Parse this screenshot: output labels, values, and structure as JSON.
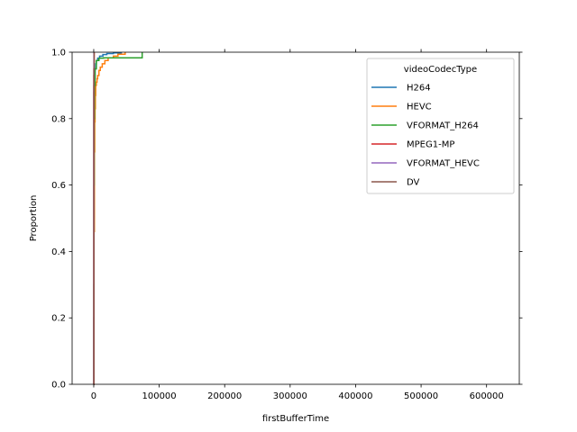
{
  "chart_data": {
    "type": "line",
    "subtype": "ecdf",
    "xlabel": "firstBufferTime",
    "ylabel": "Proportion",
    "xlim": [
      -33000,
      650000
    ],
    "ylim": [
      0.0,
      1.0
    ],
    "xticks": [
      0,
      100000,
      200000,
      300000,
      400000,
      500000,
      600000
    ],
    "xtick_labels": [
      "0",
      "100000",
      "200000",
      "300000",
      "400000",
      "500000",
      "600000"
    ],
    "yticks": [
      0.0,
      0.2,
      0.4,
      0.6,
      0.8,
      1.0
    ],
    "ytick_labels": [
      "0.0",
      "0.2",
      "0.4",
      "0.6",
      "0.8",
      "1.0"
    ],
    "grid": false,
    "legend": {
      "title": "videoCodecType",
      "placement": "upper-right"
    },
    "series": [
      {
        "name": "H264",
        "color": "#1f77b4",
        "x": [
          0,
          200,
          400,
          700,
          1000,
          1500,
          2000,
          3000,
          4000,
          6000,
          9000,
          14000,
          20000,
          30000,
          42000
        ],
        "y": [
          0.0,
          0.2,
          0.5,
          0.72,
          0.85,
          0.92,
          0.95,
          0.965,
          0.975,
          0.982,
          0.988,
          0.993,
          0.996,
          0.998,
          1.0
        ]
      },
      {
        "name": "HEVC",
        "color": "#ff7f0e",
        "x": [
          0,
          500,
          1000,
          1500,
          2000,
          2500,
          3000,
          4000,
          5000,
          6000,
          8000,
          10000,
          13000,
          17000,
          22000,
          30000,
          37000,
          48000
        ],
        "y": [
          0.0,
          0.46,
          0.7,
          0.79,
          0.83,
          0.87,
          0.9,
          0.91,
          0.92,
          0.93,
          0.945,
          0.955,
          0.965,
          0.975,
          0.983,
          0.988,
          0.994,
          1.0
        ]
      },
      {
        "name": "VFORMAT_H264",
        "color": "#2ca02c",
        "x": [
          0,
          100,
          300,
          600,
          1000,
          2000,
          4000,
          8000,
          15000,
          74000
        ],
        "y": [
          0.0,
          0.3,
          0.6,
          0.8,
          0.9,
          0.95,
          0.975,
          0.982,
          0.983,
          1.0
        ]
      },
      {
        "name": "MPEG1-MP",
        "color": "#d62728",
        "x": [
          0,
          100,
          200,
          400,
          700
        ],
        "y": [
          0.0,
          0.88,
          0.93,
          0.97,
          1.0
        ]
      },
      {
        "name": "VFORMAT_HEVC",
        "color": "#9467bd",
        "x": [
          0,
          100,
          300
        ],
        "y": [
          0.0,
          0.9,
          1.0
        ]
      },
      {
        "name": "DV",
        "color": "#8c564b",
        "x": [
          0,
          200,
          600
        ],
        "y": [
          0.0,
          0.95,
          1.0
        ]
      }
    ]
  }
}
